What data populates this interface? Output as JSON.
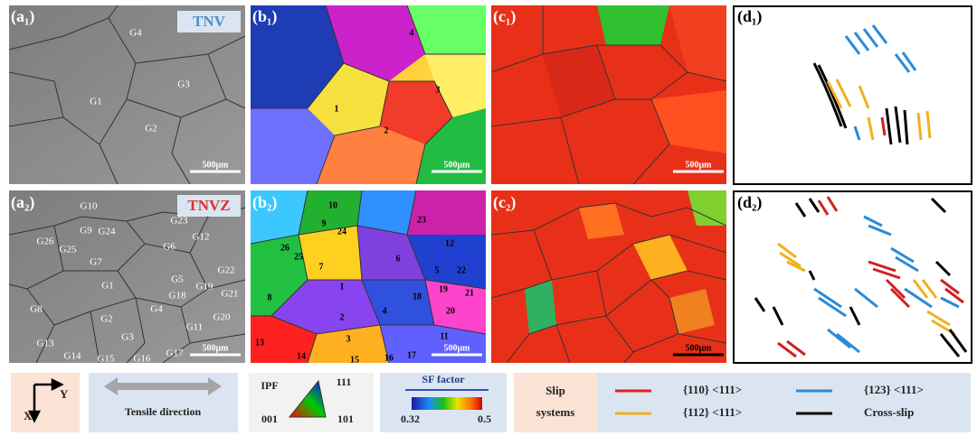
{
  "panels": [
    {
      "label": "(a₁)",
      "badge": "TNV",
      "grains": [
        "G4",
        "G3",
        "G1",
        "G2"
      ],
      "scale_bar": "500μm"
    },
    {
      "label": "(b₁)",
      "grains": [
        "4",
        "3",
        "1",
        "2"
      ],
      "scale_bar": "500μm"
    },
    {
      "label": "(c₁)",
      "scale_bar": "500μm"
    },
    {
      "label": "(d₁)"
    },
    {
      "label": "(a₂)",
      "badge": "TNVZ",
      "grains": [
        "G10",
        "G23",
        "G12",
        "G9",
        "G24",
        "G26",
        "G25",
        "G6",
        "G7",
        "G22",
        "G5",
        "G19",
        "G1",
        "G18",
        "G21",
        "G4",
        "G8",
        "G2",
        "G20",
        "G11",
        "G3",
        "G13",
        "G17",
        "G14",
        "G15",
        "G16"
      ],
      "scale_bar": "500μm"
    },
    {
      "label": "(b₂)",
      "grains": [
        "10",
        "23",
        "24",
        "9",
        "12",
        "26",
        "25",
        "6",
        "7",
        "5",
        "22",
        "1",
        "19",
        "18",
        "21",
        "8",
        "4",
        "2",
        "20",
        "11",
        "3",
        "13",
        "14",
        "15",
        "16",
        "17"
      ],
      "scale_bar": "500μm"
    },
    {
      "label": "(c₂)",
      "scale_bar": "500μm"
    },
    {
      "label": "(d₂)"
    }
  ],
  "legend": {
    "axis_y": "Y",
    "axis_x": "X",
    "tensile_direction": "Tensile direction",
    "ipf": {
      "title": "IPF",
      "corner_111": "111",
      "corner_001": "001",
      "corner_101": "101"
    },
    "sf": {
      "title": "SF factor",
      "min": "0.32",
      "max": "0.5"
    },
    "slip": {
      "title_line1": "Slip",
      "title_line2": "systems",
      "items": [
        {
          "label": "{110} <111>",
          "color": "#e02020"
        },
        {
          "label": "{123} <111>",
          "color": "#2a8ad8"
        },
        {
          "label": "{112} <111>",
          "color": "#f0b020"
        },
        {
          "label": "Cross-slip",
          "color": "#000000"
        }
      ]
    }
  }
}
